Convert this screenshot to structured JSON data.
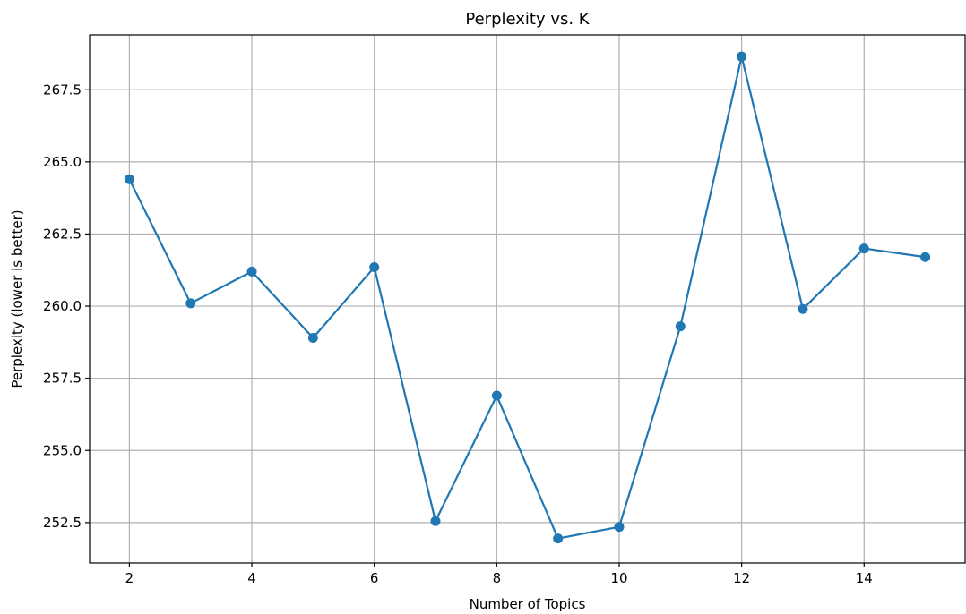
{
  "chart_data": {
    "type": "line",
    "title": "Perplexity vs. K",
    "xlabel": "Number of Topics",
    "ylabel": "Perplexity (lower is better)",
    "xlim": [
      1.35,
      15.65
    ],
    "ylim": [
      251.1,
      269.4
    ],
    "xticks": [
      2,
      4,
      6,
      8,
      10,
      12,
      14
    ],
    "xtick_labels": [
      "2",
      "4",
      "6",
      "8",
      "10",
      "12",
      "14"
    ],
    "yticks": [
      252.5,
      255.0,
      257.5,
      260.0,
      262.5,
      265.0,
      267.5
    ],
    "ytick_labels": [
      "252.5",
      "255.0",
      "257.5",
      "260.0",
      "262.5",
      "265.0",
      "267.5"
    ],
    "grid": true,
    "series": [
      {
        "color": "#1f77b4",
        "marker": "circle",
        "x": [
          2,
          3,
          4,
          5,
          6,
          7,
          8,
          9,
          10,
          11,
          12,
          13,
          14,
          15
        ],
        "y": [
          264.4,
          260.1,
          261.2,
          258.9,
          261.35,
          252.55,
          256.9,
          251.95,
          252.35,
          259.3,
          268.65,
          259.9,
          262.0,
          261.7
        ]
      }
    ]
  }
}
